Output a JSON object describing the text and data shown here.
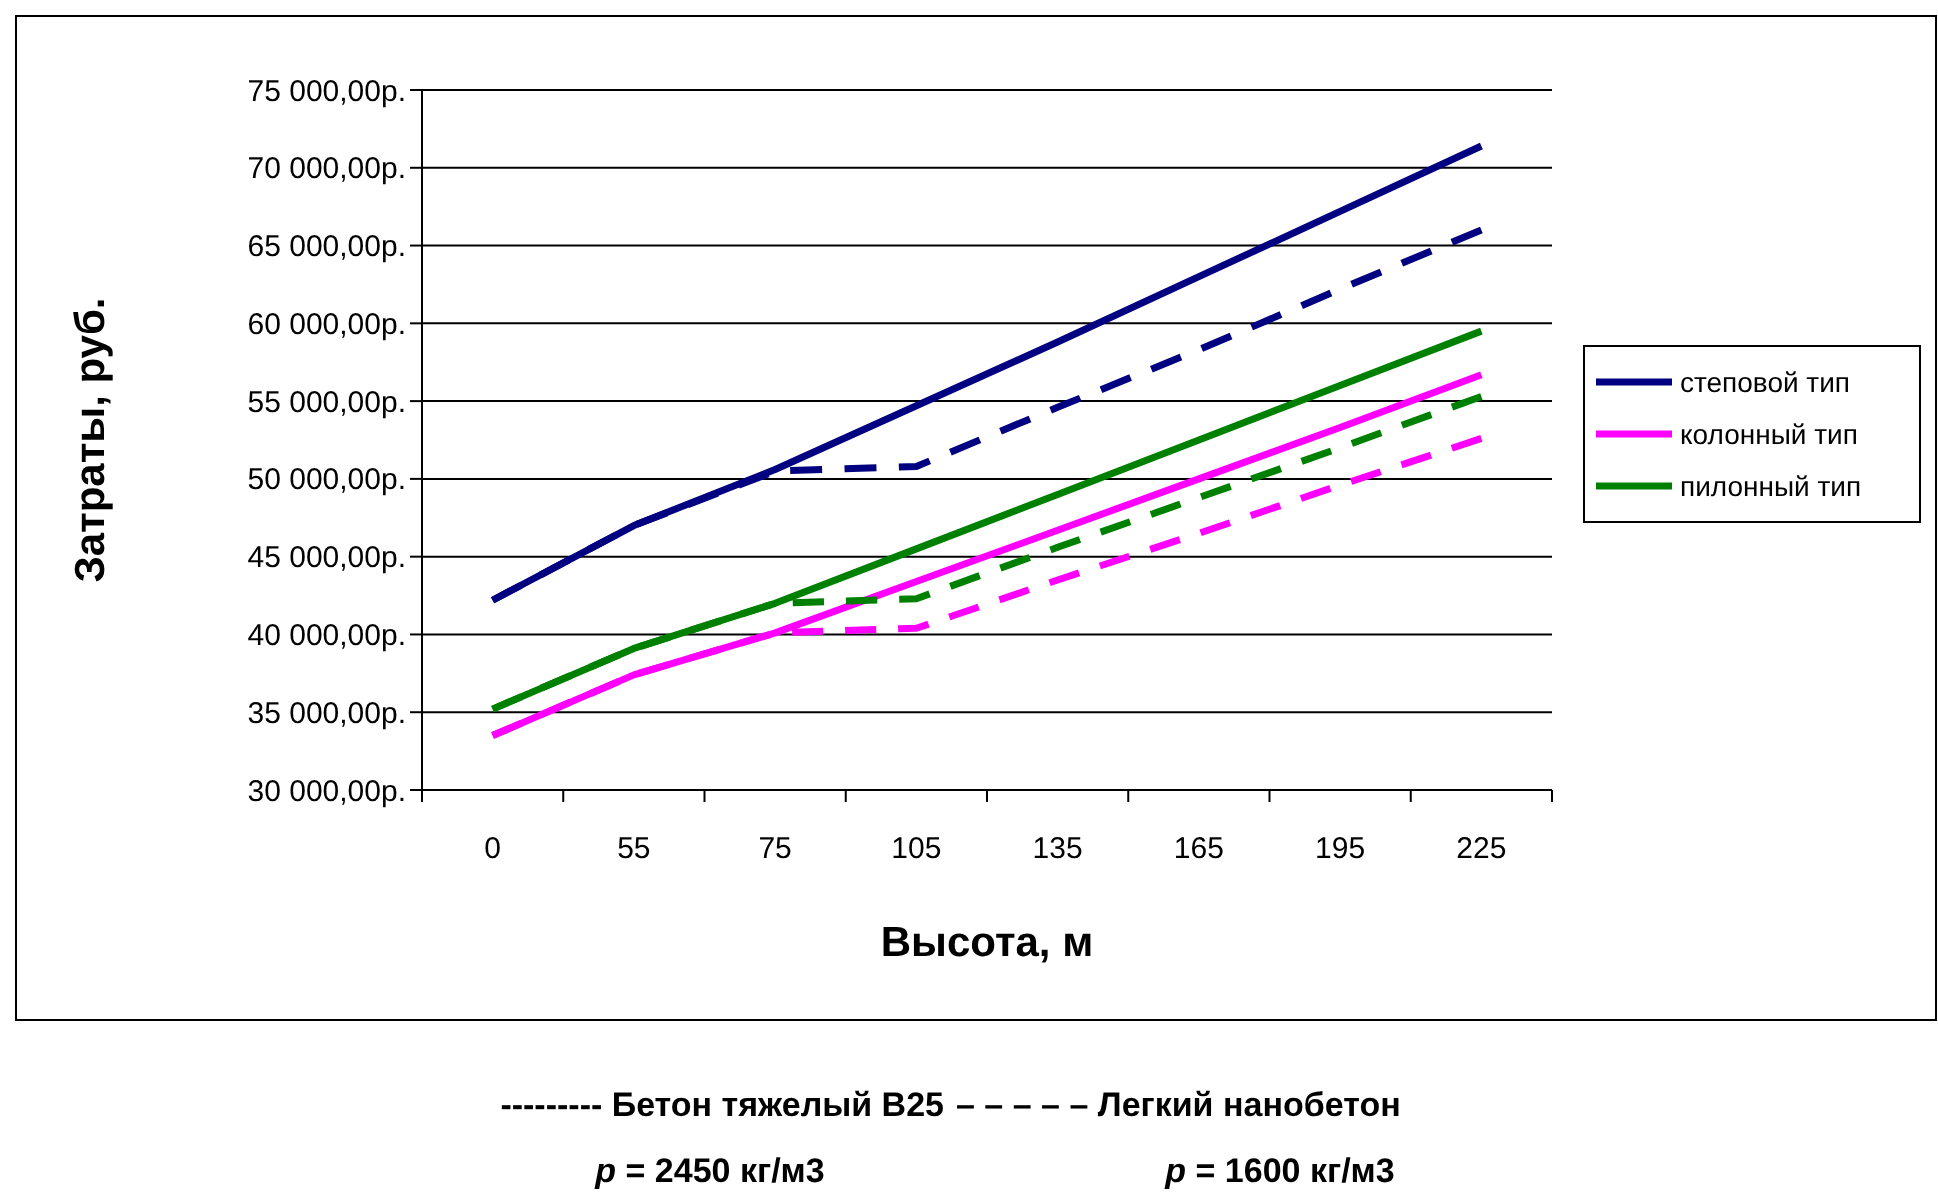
{
  "chart_data": {
    "type": "line",
    "xlabel": "Высота, м",
    "ylabel": "Затраты, руб.",
    "categories": [
      "0",
      "55",
      "75",
      "105",
      "135",
      "165",
      "195",
      "225"
    ],
    "series": [
      {
        "name": "степовой тип",
        "color": "#000080",
        "values": [
          42200,
          47000,
          50600,
          54700,
          58800,
          63000,
          67200,
          71400
        ]
      },
      {
        "name": "колонный тип",
        "color": "#ff00ff",
        "values": [
          33500,
          37400,
          40100,
          43400,
          46700,
          50000,
          53300,
          56700
        ]
      },
      {
        "name": "пилонный тип",
        "color": "#008000",
        "values": [
          35200,
          39100,
          42000,
          45500,
          49000,
          52500,
          56000,
          59500
        ]
      },
      {
        "color": "#000080",
        "line_style": "dashed",
        "values": [
          42200,
          47000,
          50500,
          50800,
          54600,
          58300,
          62200,
          66000
        ]
      },
      {
        "color": "#ff00ff",
        "line_style": "dashed",
        "values": [
          33500,
          37400,
          40100,
          40400,
          43500,
          46500,
          49600,
          52600
        ]
      },
      {
        "color": "#008000",
        "line_style": "dashed",
        "values": [
          35200,
          39100,
          42000,
          42300,
          45600,
          48800,
          52000,
          55300
        ]
      }
    ],
    "ylim": [
      30000,
      75000
    ],
    "yticks": [
      {
        "value": 30000,
        "label": "30 000,00р."
      },
      {
        "value": 35000,
        "label": "35 000,00р."
      },
      {
        "value": 40000,
        "label": "40 000,00р."
      },
      {
        "value": 45000,
        "label": "45 000,00р."
      },
      {
        "value": 50000,
        "label": "50 000,00р."
      },
      {
        "value": 55000,
        "label": "55 000,00р."
      },
      {
        "value": 60000,
        "label": "60 000,00р."
      },
      {
        "value": 65000,
        "label": "65 000,00р."
      },
      {
        "value": 70000,
        "label": "70 000,00р."
      },
      {
        "value": 75000,
        "label": "75 000,00р."
      }
    ],
    "grid": "y",
    "legend": "right",
    "line_style": "solid",
    "annotations": [
      "--------- Бетон тяжелый В25",
      "– – – – – Легкий нанобетон",
      "p = 2450 кг/м3",
      "p = 1600 кг/м3"
    ]
  }
}
